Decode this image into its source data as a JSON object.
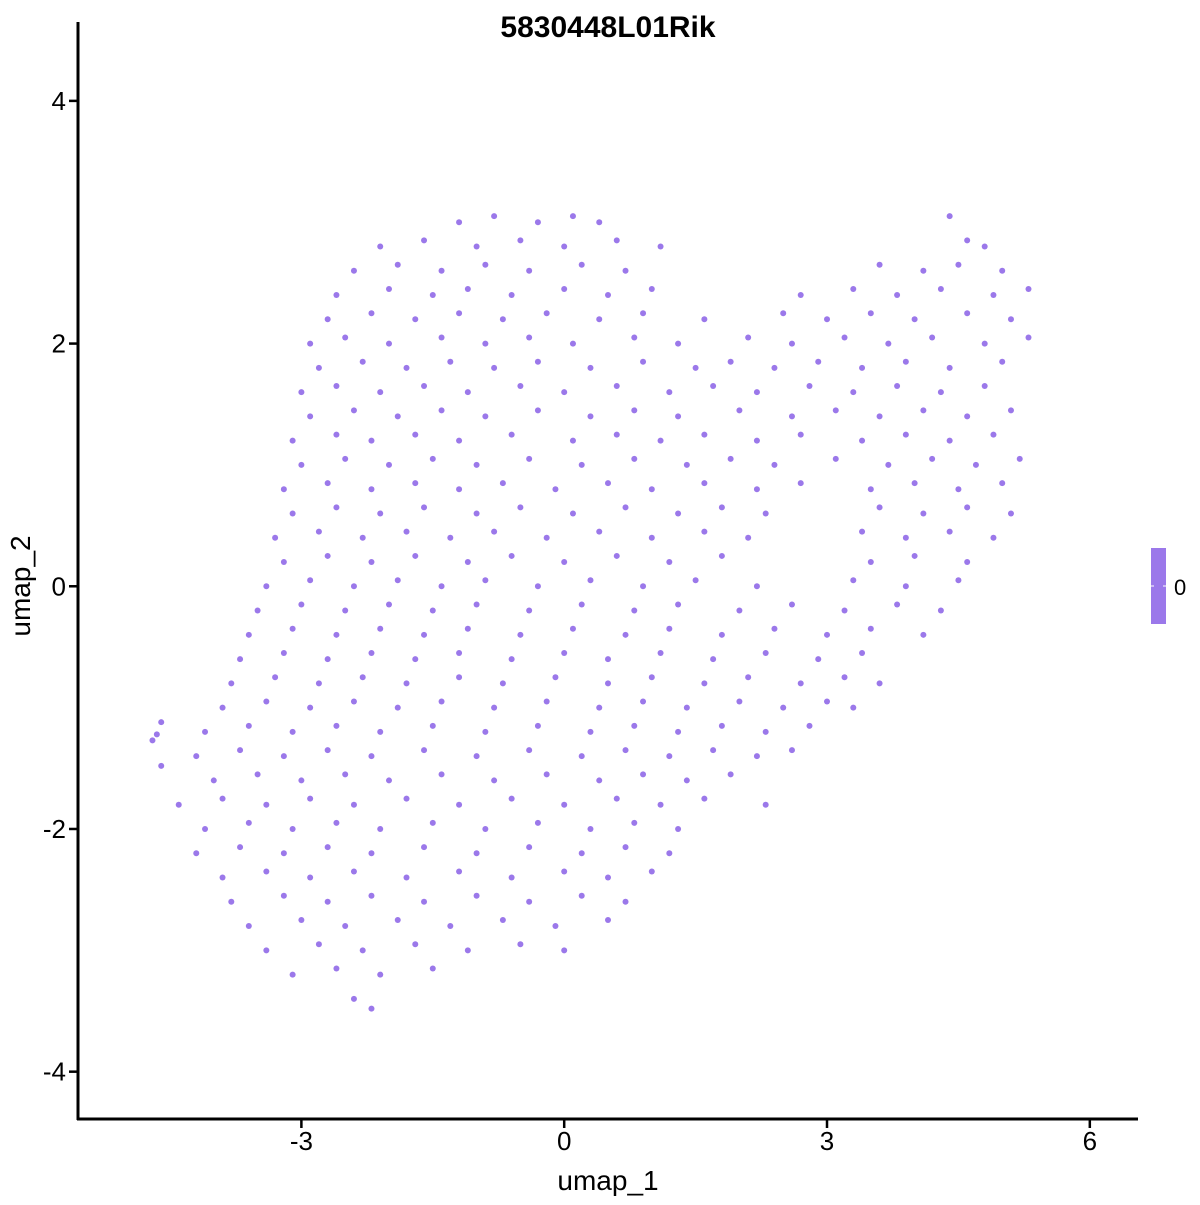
{
  "chart_data": {
    "type": "scatter",
    "title": "5830448L01Rik",
    "xlabel": "umap_1",
    "ylabel": "umap_2",
    "xlim": [
      -5.55,
      6.55
    ],
    "ylim": [
      -4.39,
      4.65
    ],
    "xticks": [
      -3,
      0,
      3,
      6
    ],
    "yticks": [
      -4,
      -2,
      0,
      2,
      4
    ],
    "grid": false,
    "point_color": "#9b78ea",
    "legend": {
      "type": "colorbar",
      "placement": "right",
      "labels": [
        "0"
      ],
      "color": "#9b78ea"
    },
    "points": [
      [
        -1.2,
        3.0
      ],
      [
        -0.8,
        3.05
      ],
      [
        -0.3,
        3.0
      ],
      [
        0.1,
        3.05
      ],
      [
        0.4,
        3.0
      ],
      [
        4.4,
        3.05
      ],
      [
        -2.1,
        2.8
      ],
      [
        -1.6,
        2.85
      ],
      [
        -1.0,
        2.8
      ],
      [
        -0.5,
        2.85
      ],
      [
        0.0,
        2.8
      ],
      [
        0.6,
        2.85
      ],
      [
        1.1,
        2.8
      ],
      [
        4.6,
        2.85
      ],
      [
        4.8,
        2.8
      ],
      [
        -2.4,
        2.6
      ],
      [
        -1.9,
        2.65
      ],
      [
        -1.4,
        2.6
      ],
      [
        -0.9,
        2.65
      ],
      [
        -0.4,
        2.6
      ],
      [
        0.2,
        2.65
      ],
      [
        0.7,
        2.6
      ],
      [
        3.6,
        2.65
      ],
      [
        4.1,
        2.6
      ],
      [
        4.5,
        2.65
      ],
      [
        5.0,
        2.6
      ],
      [
        -2.6,
        2.4
      ],
      [
        -2.0,
        2.45
      ],
      [
        -1.5,
        2.4
      ],
      [
        -1.1,
        2.45
      ],
      [
        -0.6,
        2.4
      ],
      [
        0.0,
        2.45
      ],
      [
        0.5,
        2.4
      ],
      [
        1.0,
        2.45
      ],
      [
        2.7,
        2.4
      ],
      [
        3.3,
        2.45
      ],
      [
        3.8,
        2.4
      ],
      [
        4.3,
        2.45
      ],
      [
        4.9,
        2.4
      ],
      [
        5.3,
        2.45
      ],
      [
        -2.7,
        2.2
      ],
      [
        -2.2,
        2.25
      ],
      [
        -1.7,
        2.2
      ],
      [
        -1.2,
        2.25
      ],
      [
        -0.7,
        2.2
      ],
      [
        -0.2,
        2.25
      ],
      [
        0.4,
        2.2
      ],
      [
        0.9,
        2.25
      ],
      [
        1.6,
        2.2
      ],
      [
        2.5,
        2.25
      ],
      [
        3.0,
        2.2
      ],
      [
        3.5,
        2.25
      ],
      [
        4.0,
        2.2
      ],
      [
        4.6,
        2.25
      ],
      [
        5.1,
        2.2
      ],
      [
        -2.9,
        2.0
      ],
      [
        -2.5,
        2.05
      ],
      [
        -2.0,
        2.0
      ],
      [
        -1.4,
        2.05
      ],
      [
        -0.9,
        2.0
      ],
      [
        -0.4,
        2.05
      ],
      [
        0.1,
        2.0
      ],
      [
        0.8,
        2.05
      ],
      [
        1.3,
        2.0
      ],
      [
        2.1,
        2.05
      ],
      [
        2.6,
        2.0
      ],
      [
        3.2,
        2.05
      ],
      [
        3.7,
        2.0
      ],
      [
        4.2,
        2.05
      ],
      [
        4.8,
        2.0
      ],
      [
        5.3,
        2.05
      ],
      [
        -2.8,
        1.8
      ],
      [
        -2.3,
        1.85
      ],
      [
        -1.8,
        1.8
      ],
      [
        -1.3,
        1.85
      ],
      [
        -0.8,
        1.8
      ],
      [
        -0.3,
        1.85
      ],
      [
        0.3,
        1.8
      ],
      [
        0.9,
        1.85
      ],
      [
        1.5,
        1.8
      ],
      [
        1.9,
        1.85
      ],
      [
        2.4,
        1.8
      ],
      [
        2.9,
        1.85
      ],
      [
        3.4,
        1.8
      ],
      [
        3.9,
        1.85
      ],
      [
        4.4,
        1.8
      ],
      [
        5.0,
        1.85
      ],
      [
        -3.0,
        1.6
      ],
      [
        -2.6,
        1.65
      ],
      [
        -2.1,
        1.6
      ],
      [
        -1.6,
        1.65
      ],
      [
        -1.1,
        1.6
      ],
      [
        -0.5,
        1.65
      ],
      [
        0.0,
        1.6
      ],
      [
        0.6,
        1.65
      ],
      [
        1.2,
        1.6
      ],
      [
        1.7,
        1.65
      ],
      [
        2.2,
        1.6
      ],
      [
        2.8,
        1.65
      ],
      [
        3.3,
        1.6
      ],
      [
        3.8,
        1.65
      ],
      [
        4.3,
        1.6
      ],
      [
        4.8,
        1.65
      ],
      [
        -2.9,
        1.4
      ],
      [
        -2.4,
        1.45
      ],
      [
        -1.9,
        1.4
      ],
      [
        -1.4,
        1.45
      ],
      [
        -0.9,
        1.4
      ],
      [
        -0.3,
        1.45
      ],
      [
        0.3,
        1.4
      ],
      [
        0.8,
        1.45
      ],
      [
        1.3,
        1.4
      ],
      [
        2.0,
        1.45
      ],
      [
        2.6,
        1.4
      ],
      [
        3.1,
        1.45
      ],
      [
        3.6,
        1.4
      ],
      [
        4.1,
        1.45
      ],
      [
        4.6,
        1.4
      ],
      [
        5.1,
        1.45
      ],
      [
        -3.1,
        1.2
      ],
      [
        -2.6,
        1.25
      ],
      [
        -2.2,
        1.2
      ],
      [
        -1.7,
        1.25
      ],
      [
        -1.2,
        1.2
      ],
      [
        -0.6,
        1.25
      ],
      [
        0.1,
        1.2
      ],
      [
        0.6,
        1.25
      ],
      [
        1.1,
        1.2
      ],
      [
        1.6,
        1.25
      ],
      [
        2.2,
        1.2
      ],
      [
        2.7,
        1.25
      ],
      [
        3.4,
        1.2
      ],
      [
        3.9,
        1.25
      ],
      [
        4.4,
        1.2
      ],
      [
        4.9,
        1.25
      ],
      [
        -3.0,
        1.0
      ],
      [
        -2.5,
        1.05
      ],
      [
        -2.0,
        1.0
      ],
      [
        -1.5,
        1.05
      ],
      [
        -1.0,
        1.0
      ],
      [
        -0.4,
        1.05
      ],
      [
        0.2,
        1.0
      ],
      [
        0.8,
        1.05
      ],
      [
        1.4,
        1.0
      ],
      [
        1.9,
        1.05
      ],
      [
        2.4,
        1.0
      ],
      [
        3.1,
        1.05
      ],
      [
        3.7,
        1.0
      ],
      [
        4.2,
        1.05
      ],
      [
        4.7,
        1.0
      ],
      [
        5.2,
        1.05
      ],
      [
        -3.2,
        0.8
      ],
      [
        -2.7,
        0.85
      ],
      [
        -2.2,
        0.8
      ],
      [
        -1.7,
        0.85
      ],
      [
        -1.2,
        0.8
      ],
      [
        -0.7,
        0.85
      ],
      [
        -0.1,
        0.8
      ],
      [
        0.5,
        0.85
      ],
      [
        1.0,
        0.8
      ],
      [
        1.6,
        0.85
      ],
      [
        2.2,
        0.8
      ],
      [
        2.7,
        0.85
      ],
      [
        3.5,
        0.8
      ],
      [
        4.0,
        0.85
      ],
      [
        4.5,
        0.8
      ],
      [
        5.0,
        0.85
      ],
      [
        -3.1,
        0.6
      ],
      [
        -2.6,
        0.65
      ],
      [
        -2.1,
        0.6
      ],
      [
        -1.6,
        0.65
      ],
      [
        -1.0,
        0.6
      ],
      [
        -0.5,
        0.65
      ],
      [
        0.1,
        0.6
      ],
      [
        0.7,
        0.65
      ],
      [
        1.3,
        0.6
      ],
      [
        1.8,
        0.65
      ],
      [
        2.3,
        0.6
      ],
      [
        3.6,
        0.65
      ],
      [
        4.1,
        0.6
      ],
      [
        4.6,
        0.65
      ],
      [
        5.1,
        0.6
      ],
      [
        -3.3,
        0.4
      ],
      [
        -2.8,
        0.45
      ],
      [
        -2.3,
        0.4
      ],
      [
        -1.8,
        0.45
      ],
      [
        -1.3,
        0.4
      ],
      [
        -0.8,
        0.45
      ],
      [
        -0.2,
        0.4
      ],
      [
        0.4,
        0.45
      ],
      [
        1.0,
        0.4
      ],
      [
        1.6,
        0.45
      ],
      [
        2.1,
        0.4
      ],
      [
        3.4,
        0.45
      ],
      [
        3.9,
        0.4
      ],
      [
        4.4,
        0.45
      ],
      [
        4.9,
        0.4
      ],
      [
        -3.2,
        0.2
      ],
      [
        -2.7,
        0.25
      ],
      [
        -2.2,
        0.2
      ],
      [
        -1.7,
        0.25
      ],
      [
        -1.1,
        0.2
      ],
      [
        -0.6,
        0.25
      ],
      [
        0.0,
        0.2
      ],
      [
        0.6,
        0.25
      ],
      [
        1.2,
        0.2
      ],
      [
        1.8,
        0.25
      ],
      [
        3.5,
        0.2
      ],
      [
        4.0,
        0.25
      ],
      [
        4.6,
        0.2
      ],
      [
        -3.4,
        0.0
      ],
      [
        -2.9,
        0.05
      ],
      [
        -2.4,
        0.0
      ],
      [
        -1.9,
        0.05
      ],
      [
        -1.4,
        0.0
      ],
      [
        -0.9,
        0.05
      ],
      [
        -0.3,
        0.0
      ],
      [
        0.3,
        0.05
      ],
      [
        0.9,
        0.0
      ],
      [
        1.5,
        0.05
      ],
      [
        2.2,
        0.0
      ],
      [
        3.3,
        0.05
      ],
      [
        3.9,
        0.0
      ],
      [
        4.5,
        0.05
      ],
      [
        -3.5,
        -0.2
      ],
      [
        -3.0,
        -0.15
      ],
      [
        -2.5,
        -0.2
      ],
      [
        -2.0,
        -0.15
      ],
      [
        -1.5,
        -0.2
      ],
      [
        -1.0,
        -0.15
      ],
      [
        -0.4,
        -0.2
      ],
      [
        0.2,
        -0.15
      ],
      [
        0.8,
        -0.2
      ],
      [
        1.3,
        -0.15
      ],
      [
        2.0,
        -0.2
      ],
      [
        2.6,
        -0.15
      ],
      [
        3.2,
        -0.2
      ],
      [
        3.8,
        -0.15
      ],
      [
        4.3,
        -0.2
      ],
      [
        -3.6,
        -0.4
      ],
      [
        -3.1,
        -0.35
      ],
      [
        -2.6,
        -0.4
      ],
      [
        -2.1,
        -0.35
      ],
      [
        -1.6,
        -0.4
      ],
      [
        -1.1,
        -0.35
      ],
      [
        -0.5,
        -0.4
      ],
      [
        0.1,
        -0.35
      ],
      [
        0.7,
        -0.4
      ],
      [
        1.2,
        -0.35
      ],
      [
        1.8,
        -0.4
      ],
      [
        2.4,
        -0.35
      ],
      [
        3.0,
        -0.4
      ],
      [
        3.5,
        -0.35
      ],
      [
        4.1,
        -0.4
      ],
      [
        -3.7,
        -0.6
      ],
      [
        -3.2,
        -0.55
      ],
      [
        -2.7,
        -0.6
      ],
      [
        -2.2,
        -0.55
      ],
      [
        -1.7,
        -0.6
      ],
      [
        -1.2,
        -0.55
      ],
      [
        -0.6,
        -0.6
      ],
      [
        0.0,
        -0.55
      ],
      [
        0.5,
        -0.6
      ],
      [
        1.1,
        -0.55
      ],
      [
        1.7,
        -0.6
      ],
      [
        2.3,
        -0.55
      ],
      [
        2.9,
        -0.6
      ],
      [
        3.4,
        -0.55
      ],
      [
        -3.8,
        -0.8
      ],
      [
        -3.3,
        -0.75
      ],
      [
        -2.8,
        -0.8
      ],
      [
        -2.3,
        -0.75
      ],
      [
        -1.8,
        -0.8
      ],
      [
        -1.2,
        -0.75
      ],
      [
        -0.7,
        -0.8
      ],
      [
        -0.1,
        -0.75
      ],
      [
        0.5,
        -0.8
      ],
      [
        1.0,
        -0.75
      ],
      [
        1.6,
        -0.8
      ],
      [
        2.1,
        -0.75
      ],
      [
        2.7,
        -0.8
      ],
      [
        3.2,
        -0.75
      ],
      [
        3.6,
        -0.8
      ],
      [
        -3.9,
        -1.0
      ],
      [
        -3.4,
        -0.95
      ],
      [
        -2.9,
        -1.0
      ],
      [
        -2.4,
        -0.95
      ],
      [
        -1.9,
        -1.0
      ],
      [
        -1.4,
        -0.95
      ],
      [
        -0.8,
        -1.0
      ],
      [
        -0.2,
        -0.95
      ],
      [
        0.4,
        -1.0
      ],
      [
        0.9,
        -0.95
      ],
      [
        1.4,
        -1.0
      ],
      [
        2.0,
        -0.95
      ],
      [
        2.5,
        -1.0
      ],
      [
        3.0,
        -0.95
      ],
      [
        3.3,
        -1.0
      ],
      [
        -4.1,
        -1.2
      ],
      [
        -3.6,
        -1.15
      ],
      [
        -3.1,
        -1.2
      ],
      [
        -2.6,
        -1.15
      ],
      [
        -2.1,
        -1.2
      ],
      [
        -1.5,
        -1.15
      ],
      [
        -0.9,
        -1.2
      ],
      [
        -0.3,
        -1.15
      ],
      [
        0.3,
        -1.2
      ],
      [
        0.8,
        -1.15
      ],
      [
        1.3,
        -1.2
      ],
      [
        1.8,
        -1.15
      ],
      [
        2.3,
        -1.2
      ],
      [
        2.8,
        -1.15
      ],
      [
        -4.7,
        -1.27
      ],
      [
        -4.6,
        -1.12
      ],
      [
        -4.65,
        -1.22
      ],
      [
        -4.6,
        -1.48
      ],
      [
        -4.2,
        -1.4
      ],
      [
        -3.7,
        -1.35
      ],
      [
        -3.2,
        -1.4
      ],
      [
        -2.7,
        -1.35
      ],
      [
        -2.2,
        -1.4
      ],
      [
        -1.6,
        -1.35
      ],
      [
        -1.0,
        -1.4
      ],
      [
        -0.4,
        -1.35
      ],
      [
        0.2,
        -1.4
      ],
      [
        0.7,
        -1.35
      ],
      [
        1.2,
        -1.4
      ],
      [
        1.7,
        -1.35
      ],
      [
        2.2,
        -1.4
      ],
      [
        2.6,
        -1.35
      ],
      [
        -4.0,
        -1.6
      ],
      [
        -3.5,
        -1.55
      ],
      [
        -3.0,
        -1.6
      ],
      [
        -2.5,
        -1.55
      ],
      [
        -2.0,
        -1.6
      ],
      [
        -1.4,
        -1.55
      ],
      [
        -0.8,
        -1.6
      ],
      [
        -0.2,
        -1.55
      ],
      [
        0.4,
        -1.6
      ],
      [
        0.9,
        -1.55
      ],
      [
        1.4,
        -1.6
      ],
      [
        1.9,
        -1.55
      ],
      [
        -4.4,
        -1.8
      ],
      [
        -3.9,
        -1.75
      ],
      [
        -3.4,
        -1.8
      ],
      [
        -2.9,
        -1.75
      ],
      [
        -2.4,
        -1.8
      ],
      [
        -1.8,
        -1.75
      ],
      [
        -1.2,
        -1.8
      ],
      [
        -0.6,
        -1.75
      ],
      [
        0.0,
        -1.8
      ],
      [
        0.6,
        -1.75
      ],
      [
        1.1,
        -1.8
      ],
      [
        1.6,
        -1.75
      ],
      [
        2.3,
        -1.8
      ],
      [
        -4.1,
        -2.0
      ],
      [
        -3.6,
        -1.95
      ],
      [
        -3.1,
        -2.0
      ],
      [
        -2.6,
        -1.95
      ],
      [
        -2.1,
        -2.0
      ],
      [
        -1.5,
        -1.95
      ],
      [
        -0.9,
        -2.0
      ],
      [
        -0.3,
        -1.95
      ],
      [
        0.3,
        -2.0
      ],
      [
        0.8,
        -1.95
      ],
      [
        1.3,
        -2.0
      ],
      [
        -4.2,
        -2.2
      ],
      [
        -3.7,
        -2.15
      ],
      [
        -3.2,
        -2.2
      ],
      [
        -2.7,
        -2.15
      ],
      [
        -2.2,
        -2.2
      ],
      [
        -1.6,
        -2.15
      ],
      [
        -1.0,
        -2.2
      ],
      [
        -0.4,
        -2.15
      ],
      [
        0.2,
        -2.2
      ],
      [
        0.7,
        -2.15
      ],
      [
        1.2,
        -2.2
      ],
      [
        -3.9,
        -2.4
      ],
      [
        -3.4,
        -2.35
      ],
      [
        -2.9,
        -2.4
      ],
      [
        -2.4,
        -2.35
      ],
      [
        -1.8,
        -2.4
      ],
      [
        -1.2,
        -2.35
      ],
      [
        -0.6,
        -2.4
      ],
      [
        0.0,
        -2.35
      ],
      [
        0.5,
        -2.4
      ],
      [
        1.0,
        -2.35
      ],
      [
        -3.8,
        -2.6
      ],
      [
        -3.2,
        -2.55
      ],
      [
        -2.7,
        -2.6
      ],
      [
        -2.2,
        -2.55
      ],
      [
        -1.6,
        -2.6
      ],
      [
        -1.0,
        -2.55
      ],
      [
        -0.4,
        -2.6
      ],
      [
        0.2,
        -2.55
      ],
      [
        0.7,
        -2.6
      ],
      [
        -3.6,
        -2.8
      ],
      [
        -3.0,
        -2.75
      ],
      [
        -2.5,
        -2.8
      ],
      [
        -1.9,
        -2.75
      ],
      [
        -1.3,
        -2.8
      ],
      [
        -0.7,
        -2.75
      ],
      [
        -0.1,
        -2.8
      ],
      [
        0.5,
        -2.75
      ],
      [
        -3.4,
        -3.0
      ],
      [
        -2.8,
        -2.95
      ],
      [
        -2.3,
        -3.0
      ],
      [
        -1.7,
        -2.95
      ],
      [
        -1.1,
        -3.0
      ],
      [
        -0.5,
        -2.95
      ],
      [
        0.0,
        -3.0
      ],
      [
        -3.1,
        -3.2
      ],
      [
        -2.6,
        -3.15
      ],
      [
        -2.1,
        -3.2
      ],
      [
        -1.5,
        -3.15
      ],
      [
        -2.4,
        -3.4
      ],
      [
        -2.2,
        -3.48
      ]
    ]
  }
}
